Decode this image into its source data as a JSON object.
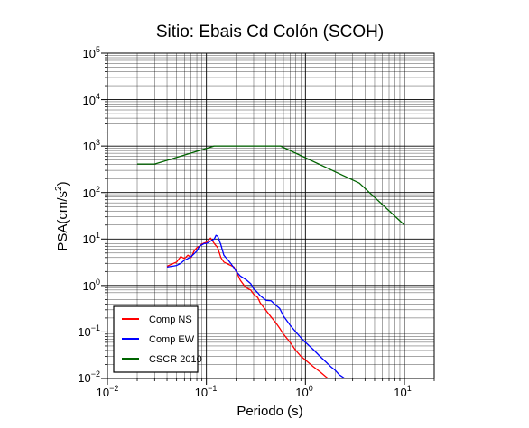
{
  "chart_data": {
    "type": "line",
    "title": "Sitio: Ebais Cd Colón (SCOH)",
    "xlabel": "Periodo (s)",
    "ylabel": {
      "base": "PSA(cm/s",
      "sup": "2",
      "end": ")"
    },
    "x_scale": "log",
    "y_scale": "log",
    "xlim": [
      0.01,
      20
    ],
    "ylim": [
      0.01,
      100000
    ],
    "grid": true,
    "legend_position": "bottom-left",
    "x_ticks": [
      {
        "base": "10",
        "exp": "−2"
      },
      {
        "base": "10",
        "exp": "−1"
      },
      {
        "base": "10",
        "exp": "0"
      },
      {
        "base": "10",
        "exp": "1"
      }
    ],
    "y_ticks": [
      {
        "base": "10",
        "exp": "−2"
      },
      {
        "base": "10",
        "exp": "−1"
      },
      {
        "base": "10",
        "exp": "0"
      },
      {
        "base": "10",
        "exp": "1"
      },
      {
        "base": "10",
        "exp": "2"
      },
      {
        "base": "10",
        "exp": "3"
      },
      {
        "base": "10",
        "exp": "4"
      },
      {
        "base": "10",
        "exp": "5"
      }
    ],
    "series": [
      {
        "name": "Comp NS",
        "color": "#ff0000",
        "x": [
          0.04,
          0.045,
          0.05,
          0.055,
          0.06,
          0.065,
          0.07,
          0.075,
          0.08,
          0.085,
          0.09,
          0.095,
          0.1,
          0.11,
          0.12,
          0.13,
          0.14,
          0.15,
          0.17,
          0.19,
          0.2,
          0.22,
          0.25,
          0.28,
          0.3,
          0.33,
          0.35,
          0.4,
          0.45,
          0.5,
          0.55,
          0.6,
          0.7,
          0.8,
          0.9,
          1.0,
          1.2,
          1.4,
          1.6,
          1.8
        ],
        "y": [
          2.6,
          2.9,
          3.2,
          4.2,
          3.8,
          4.5,
          4.0,
          5.5,
          6.5,
          7.0,
          7.8,
          8.2,
          8.5,
          10.5,
          8.0,
          6.5,
          4.0,
          3.2,
          2.8,
          2.5,
          2.0,
          1.3,
          0.9,
          0.8,
          0.65,
          0.55,
          0.42,
          0.29,
          0.21,
          0.16,
          0.12,
          0.09,
          0.06,
          0.04,
          0.03,
          0.025,
          0.018,
          0.014,
          0.011,
          0.009
        ]
      },
      {
        "name": "Comp EW",
        "color": "#0000ff",
        "x": [
          0.04,
          0.045,
          0.05,
          0.055,
          0.06,
          0.065,
          0.07,
          0.075,
          0.08,
          0.085,
          0.09,
          0.095,
          0.1,
          0.11,
          0.12,
          0.125,
          0.13,
          0.14,
          0.15,
          0.17,
          0.19,
          0.2,
          0.22,
          0.25,
          0.28,
          0.3,
          0.33,
          0.35,
          0.4,
          0.45,
          0.5,
          0.55,
          0.6,
          0.7,
          0.8,
          0.9,
          1.0,
          1.2,
          1.4,
          1.6,
          1.8,
          2.0,
          2.2,
          2.5
        ],
        "y": [
          2.5,
          2.6,
          2.7,
          3.0,
          3.5,
          3.8,
          4.2,
          4.8,
          5.5,
          7.0,
          7.5,
          8.0,
          8.0,
          9.0,
          10.0,
          12.0,
          11.5,
          7.5,
          4.5,
          3.3,
          2.4,
          2.0,
          1.6,
          1.35,
          1.1,
          0.85,
          0.7,
          0.6,
          0.48,
          0.47,
          0.38,
          0.32,
          0.22,
          0.14,
          0.1,
          0.075,
          0.06,
          0.042,
          0.03,
          0.023,
          0.018,
          0.015,
          0.012,
          0.01
        ]
      },
      {
        "name": "CSCR 2010",
        "color": "#006400",
        "x": [
          0.02,
          0.03,
          0.12,
          0.56,
          3.5,
          10
        ],
        "y": [
          410,
          410,
          1000,
          1000,
          160,
          20
        ]
      }
    ]
  }
}
